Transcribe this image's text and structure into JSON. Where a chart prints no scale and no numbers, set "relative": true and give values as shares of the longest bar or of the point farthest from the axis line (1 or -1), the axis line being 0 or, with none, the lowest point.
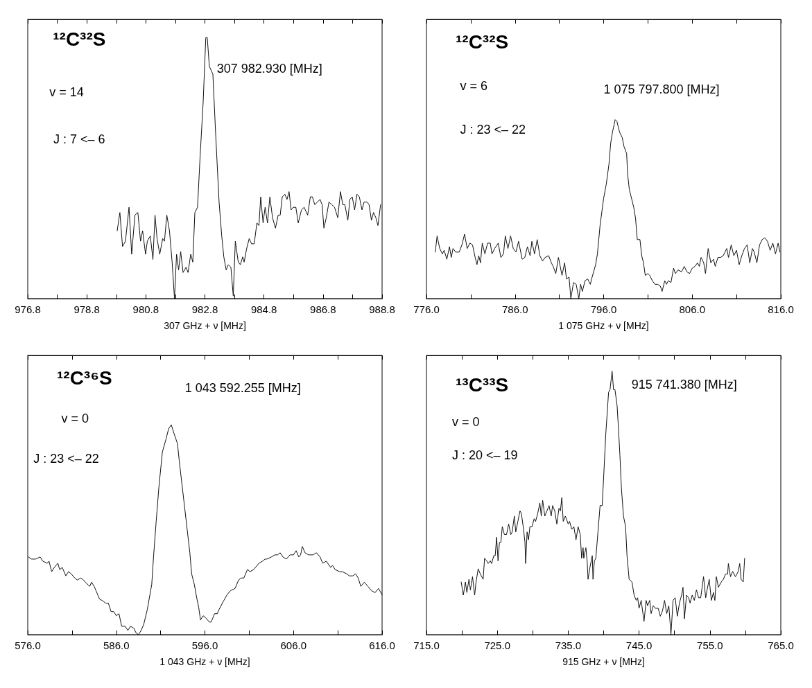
{
  "chart_data": [
    {
      "type": "line",
      "relative": true,
      "title": "¹²C³²S",
      "xlabel": "307 GHz + ν [MHz]",
      "annotations": [
        "307 982.930 [MHz]",
        "v = 14",
        "J : 7 <– 6"
      ],
      "color": "#111111",
      "xlim": [
        976.8,
        988.8
      ],
      "xticks": [
        976.8,
        {
          "value": 977.8,
          "label": null
        },
        978.8,
        {
          "value": 979.8,
          "label": null
        },
        980.8,
        {
          "value": 981.8,
          "label": null
        },
        982.8,
        {
          "value": 983.8,
          "label": null
        },
        984.8,
        {
          "value": 985.8,
          "label": null
        },
        986.8,
        {
          "value": 987.8,
          "label": null
        },
        988.8
      ],
      "x": [
        979.83,
        979.92,
        980.01,
        980.11,
        980.23,
        980.32,
        980.43,
        980.53,
        980.62,
        980.69,
        980.79,
        980.85,
        980.95,
        981.04,
        981.11,
        981.18,
        981.27,
        981.37,
        981.43,
        981.51,
        981.6,
        981.69,
        981.77,
        981.84,
        981.91,
        981.98,
        982.06,
        982.16,
        982.23,
        982.32,
        982.39,
        982.46,
        982.55,
        982.64,
        982.74,
        982.83,
        982.88,
        982.95,
        983.07,
        983.16,
        983.28,
        983.37,
        983.44,
        983.52,
        983.59,
        983.68,
        983.76,
        983.83,
        983.93,
        984.0,
        984.08,
        984.13,
        984.21,
        984.3,
        984.38,
        984.47,
        984.56,
        984.63,
        984.69,
        984.77,
        984.84,
        984.92,
        985.0,
        985.09,
        985.19,
        985.28,
        985.35,
        985.42,
        985.51,
        985.58,
        985.65,
        985.72,
        985.79,
        985.88,
        985.96,
        986.07,
        986.16,
        986.28,
        986.37,
        986.44,
        986.52,
        986.61,
        986.7,
        986.77,
        986.83,
        986.91,
        987.0,
        987.1,
        987.19,
        987.3,
        987.39,
        987.47,
        987.54,
        987.64,
        987.71,
        987.79,
        987.87,
        987.95,
        988.03,
        988.12,
        988.19,
        988.29,
        988.36,
        988.44,
        988.51,
        988.59,
        988.66,
        988.75
      ],
      "values": [
        0.26,
        0.33,
        0.2,
        0.22,
        0.35,
        0.17,
        0.32,
        0.33,
        0.22,
        0.26,
        0.17,
        0.22,
        0.24,
        0.15,
        0.32,
        0.23,
        0.17,
        0.23,
        0.22,
        0.32,
        0.26,
        0.14,
        0.0,
        0.17,
        0.11,
        0.18,
        0.1,
        0.12,
        0.1,
        0.17,
        0.14,
        0.33,
        0.35,
        0.55,
        0.75,
        1.0,
        1.0,
        0.89,
        0.86,
        0.64,
        0.37,
        0.24,
        0.16,
        0.11,
        0.13,
        0.12,
        0.01,
        0.22,
        0.14,
        0.13,
        0.16,
        0.14,
        0.19,
        0.23,
        0.21,
        0.21,
        0.29,
        0.28,
        0.39,
        0.29,
        0.35,
        0.29,
        0.39,
        0.31,
        0.27,
        0.32,
        0.32,
        0.39,
        0.4,
        0.38,
        0.41,
        0.34,
        0.35,
        0.35,
        0.29,
        0.34,
        0.35,
        0.32,
        0.39,
        0.39,
        0.36,
        0.37,
        0.38,
        0.36,
        0.27,
        0.31,
        0.37,
        0.36,
        0.35,
        0.31,
        0.41,
        0.36,
        0.36,
        0.3,
        0.38,
        0.39,
        0.34,
        0.4,
        0.39,
        0.34,
        0.37,
        0.37,
        0.36,
        0.3,
        0.33,
        0.31,
        0.28,
        0.36
      ]
    },
    {
      "type": "line",
      "relative": true,
      "title": "¹²C³²S",
      "xlabel": "1 075 GHz + ν [MHz]",
      "annotations": [
        "1 075 797.800 [MHz]",
        "v = 6",
        "J : 23 <– 22"
      ],
      "color": "#111111",
      "xlim": [
        776,
        816
      ],
      "xticks": [
        {
          "value": 776,
          "label": "776.0"
        },
        {
          "value": 781,
          "label": null
        },
        {
          "value": 786,
          "label": "786.0"
        },
        {
          "value": 791,
          "label": null
        },
        {
          "value": 796,
          "label": "796.0"
        },
        {
          "value": 801,
          "label": null
        },
        {
          "value": 806,
          "label": "806.0"
        },
        {
          "value": 811,
          "label": null
        },
        {
          "value": 816,
          "label": "816.0"
        }
      ],
      "x": [
        777.0,
        777.2,
        777.5,
        777.8,
        778.0,
        778.3,
        778.6,
        778.8,
        779.0,
        779.3,
        779.7,
        780.0,
        780.3,
        780.6,
        780.9,
        781.2,
        781.5,
        781.7,
        781.9,
        782.1,
        782.3,
        782.6,
        782.9,
        783.2,
        783.4,
        783.7,
        784.1,
        784.4,
        784.7,
        784.9,
        785.2,
        785.5,
        785.8,
        786.1,
        786.4,
        786.8,
        787.1,
        787.4,
        787.7,
        787.9,
        788.2,
        788.5,
        788.8,
        789.1,
        789.4,
        789.8,
        790.1,
        790.3,
        790.6,
        790.9,
        791.3,
        791.6,
        791.8,
        792.1,
        792.3,
        792.6,
        792.9,
        793.2,
        793.4,
        793.6,
        793.9,
        794.2,
        794.5,
        794.7,
        795.1,
        795.3,
        795.6,
        796.0,
        796.3,
        796.6,
        796.8,
        797.0,
        797.3,
        797.5,
        797.8,
        798.1,
        798.3,
        798.6,
        798.7,
        798.9,
        799.2,
        799.4,
        799.6,
        799.8,
        800.1,
        800.3,
        800.5,
        800.7,
        801.0,
        801.2,
        801.5,
        801.8,
        802.1,
        802.4,
        802.6,
        802.9,
        803.1,
        803.3,
        803.6,
        803.9,
        804.1,
        804.4,
        804.8,
        805.1,
        805.4,
        805.7,
        806.0,
        806.3,
        806.6,
        806.8,
        807.0,
        807.3,
        807.5,
        807.8,
        808.1,
        808.4,
        808.6,
        808.9,
        809.2,
        809.5,
        809.9,
        810.1,
        810.4,
        810.7,
        811.0,
        811.3,
        811.6,
        811.9,
        812.2,
        812.5,
        812.8,
        813.0,
        813.3,
        813.6,
        813.9,
        814.2,
        814.5,
        814.8,
        815.1,
        815.4,
        815.7,
        815.9
      ],
      "values": [
        0.26,
        0.35,
        0.28,
        0.25,
        0.27,
        0.22,
        0.29,
        0.23,
        0.28,
        0.26,
        0.26,
        0.3,
        0.36,
        0.28,
        0.31,
        0.3,
        0.23,
        0.19,
        0.24,
        0.2,
        0.31,
        0.25,
        0.31,
        0.31,
        0.25,
        0.28,
        0.31,
        0.23,
        0.25,
        0.35,
        0.28,
        0.35,
        0.28,
        0.26,
        0.32,
        0.22,
        0.23,
        0.29,
        0.24,
        0.32,
        0.25,
        0.33,
        0.24,
        0.21,
        0.23,
        0.24,
        0.2,
        0.18,
        0.14,
        0.23,
        0.13,
        0.2,
        0.11,
        0.12,
        0.0,
        0.09,
        0.08,
        0.0,
        0.08,
        0.04,
        0.1,
        0.11,
        0.08,
        0.12,
        0.19,
        0.25,
        0.41,
        0.56,
        0.64,
        0.75,
        0.87,
        0.93,
        1.0,
        0.99,
        0.93,
        0.9,
        0.85,
        0.81,
        0.7,
        0.61,
        0.55,
        0.51,
        0.45,
        0.33,
        0.33,
        0.24,
        0.2,
        0.13,
        0.14,
        0.13,
        0.1,
        0.08,
        0.08,
        0.07,
        0.04,
        0.1,
        0.08,
        0.1,
        0.09,
        0.17,
        0.14,
        0.16,
        0.15,
        0.18,
        0.15,
        0.14,
        0.17,
        0.18,
        0.2,
        0.18,
        0.23,
        0.2,
        0.14,
        0.28,
        0.2,
        0.22,
        0.18,
        0.23,
        0.23,
        0.24,
        0.28,
        0.23,
        0.3,
        0.24,
        0.27,
        0.19,
        0.24,
        0.28,
        0.3,
        0.2,
        0.28,
        0.26,
        0.2,
        0.3,
        0.33,
        0.34,
        0.32,
        0.27,
        0.31,
        0.25,
        0.31,
        0.26
      ]
    },
    {
      "type": "line",
      "relative": true,
      "title": "¹²C³⁶S",
      "xlabel": "1 043 GHz + ν [MHz]",
      "annotations": [
        "1 043 592.255 [MHz]",
        "v = 0",
        "J : 23 <– 22"
      ],
      "color": "#111111",
      "xlim": [
        576,
        616
      ],
      "xticks": [
        {
          "value": 576,
          "label": "576.0"
        },
        {
          "value": 581,
          "label": null
        },
        {
          "value": 586,
          "label": "586.0"
        },
        {
          "value": 591,
          "label": null
        },
        {
          "value": 596,
          "label": "596.0"
        },
        {
          "value": 601,
          "label": null
        },
        {
          "value": 606,
          "label": "606.0"
        },
        {
          "value": 611,
          "label": null
        },
        {
          "value": 616,
          "label": "616.0"
        }
      ],
      "x": [
        576.1,
        576.4,
        576.9,
        577.4,
        577.7,
        578.2,
        578.4,
        578.7,
        579.0,
        579.4,
        579.6,
        579.9,
        580.3,
        580.6,
        580.9,
        581.3,
        581.6,
        582.0,
        582.3,
        582.5,
        583.0,
        583.2,
        583.5,
        583.7,
        584.1,
        584.5,
        584.8,
        585.1,
        585.4,
        585.7,
        586.0,
        586.3,
        586.6,
        587.0,
        587.3,
        587.6,
        588.0,
        588.2,
        588.5,
        588.8,
        589.1,
        589.5,
        590.0,
        590.2,
        590.5,
        590.8,
        591.2,
        591.6,
        591.9,
        592.2,
        592.5,
        592.9,
        593.1,
        593.4,
        593.7,
        594.0,
        594.3,
        594.5,
        594.8,
        595.1,
        595.3,
        595.5,
        595.8,
        596.1,
        596.3,
        596.5,
        596.7,
        597.1,
        597.4,
        597.6,
        598.1,
        598.5,
        598.9,
        599.4,
        599.8,
        600.1,
        600.4,
        600.8,
        601.1,
        601.5,
        602.1,
        602.5,
        602.8,
        603.0,
        603.5,
        603.9,
        604.2,
        604.5,
        604.8,
        605.2,
        605.6,
        606.0,
        606.3,
        606.6,
        606.8,
        607.0,
        607.3,
        607.7,
        608.2,
        608.6,
        609.0,
        609.3,
        609.7,
        610.2,
        610.4,
        610.7,
        611.2,
        611.5,
        612.0,
        612.3,
        612.7,
        613.0,
        613.3,
        613.6,
        614.0,
        614.4,
        614.8,
        615.2,
        615.6,
        616.0
      ],
      "values": [
        0.37,
        0.36,
        0.36,
        0.37,
        0.35,
        0.34,
        0.35,
        0.3,
        0.32,
        0.34,
        0.31,
        0.32,
        0.28,
        0.3,
        0.29,
        0.27,
        0.26,
        0.27,
        0.26,
        0.25,
        0.23,
        0.25,
        0.23,
        0.21,
        0.17,
        0.16,
        0.15,
        0.15,
        0.11,
        0.11,
        0.09,
        0.1,
        0.04,
        0.04,
        0.02,
        0.04,
        0.03,
        0.01,
        0.0,
        0.02,
        0.05,
        0.12,
        0.24,
        0.37,
        0.54,
        0.7,
        0.87,
        0.93,
        0.98,
        1.0,
        0.96,
        0.91,
        0.83,
        0.72,
        0.61,
        0.5,
        0.39,
        0.29,
        0.24,
        0.17,
        0.13,
        0.07,
        0.09,
        0.08,
        0.07,
        0.06,
        0.06,
        0.1,
        0.1,
        0.12,
        0.16,
        0.19,
        0.21,
        0.22,
        0.26,
        0.27,
        0.27,
        0.31,
        0.3,
        0.31,
        0.34,
        0.35,
        0.36,
        0.36,
        0.37,
        0.38,
        0.38,
        0.39,
        0.37,
        0.36,
        0.38,
        0.38,
        0.4,
        0.37,
        0.38,
        0.42,
        0.39,
        0.38,
        0.38,
        0.39,
        0.37,
        0.34,
        0.35,
        0.32,
        0.33,
        0.31,
        0.3,
        0.3,
        0.29,
        0.28,
        0.28,
        0.29,
        0.27,
        0.23,
        0.25,
        0.23,
        0.21,
        0.2,
        0.22,
        0.19
      ]
    },
    {
      "type": "line",
      "relative": true,
      "title": "¹³C³³S",
      "xlabel": "915 GHz + ν [MHz]",
      "annotations": [
        "915 741.380 [MHz]",
        "v = 0",
        "J : 20 <– 19"
      ],
      "color": "#111111",
      "xlim": [
        715,
        765
      ],
      "xticks": [
        {
          "value": 715,
          "label": "715.0"
        },
        {
          "value": 720,
          "label": null
        },
        {
          "value": 725,
          "label": "725.0"
        },
        {
          "value": 730,
          "label": null
        },
        {
          "value": 735,
          "label": "735.0"
        },
        {
          "value": 740,
          "label": null
        },
        {
          "value": 745,
          "label": "745.0"
        },
        {
          "value": 750,
          "label": null
        },
        {
          "value": 755,
          "label": "755.0"
        },
        {
          "value": 760,
          "label": null
        },
        {
          "value": 765,
          "label": "765.0"
        }
      ],
      "x": [
        719.9,
        720.2,
        720.5,
        720.7,
        721.0,
        721.2,
        721.5,
        721.8,
        722.0,
        722.3,
        722.6,
        723.0,
        723.2,
        723.5,
        723.7,
        724.0,
        724.2,
        724.5,
        724.7,
        724.9,
        725.1,
        725.3,
        725.5,
        725.7,
        726.0,
        726.3,
        726.6,
        726.9,
        727.1,
        727.4,
        727.6,
        727.9,
        728.2,
        728.4,
        728.7,
        728.9,
        729.0,
        729.2,
        729.4,
        729.6,
        729.9,
        730.2,
        730.4,
        730.7,
        731.0,
        731.2,
        731.4,
        731.7,
        732.0,
        732.3,
        732.6,
        732.8,
        733.1,
        733.4,
        733.7,
        733.9,
        734.1,
        734.3,
        734.6,
        735.0,
        735.2,
        735.5,
        735.8,
        736.1,
        736.4,
        736.7,
        736.9,
        737.1,
        737.2,
        737.5,
        737.7,
        737.8,
        738.1,
        738.4,
        738.5,
        738.7,
        738.9,
        739.2,
        739.5,
        739.8,
        740.1,
        740.3,
        740.7,
        740.9,
        741.2,
        741.4,
        741.6,
        741.9,
        742.1,
        742.3,
        742.5,
        742.8,
        743.1,
        743.3,
        743.6,
        744.0,
        744.3,
        744.6,
        744.8,
        745.0,
        745.3,
        745.7,
        746.0,
        746.2,
        746.5,
        746.7,
        747.0,
        747.3,
        747.7,
        748.0,
        748.3,
        748.6,
        748.9,
        749.2,
        749.5,
        749.8,
        750.1,
        750.4,
        750.7,
        751.0,
        751.2,
        751.4,
        751.7,
        752.0,
        752.2,
        752.5,
        752.8,
        753.1,
        753.4,
        753.7,
        754.1,
        754.4,
        754.6,
        754.9,
        755.2,
        755.5,
        755.7,
        755.9,
        756.2,
        756.6,
        756.9,
        757.2,
        757.5,
        757.6,
        757.9,
        758.2,
        758.6,
        759.0,
        759.2,
        759.4,
        759.7,
        759.9
      ],
      "values": [
        0.2,
        0.15,
        0.2,
        0.16,
        0.21,
        0.17,
        0.22,
        0.15,
        0.2,
        0.25,
        0.23,
        0.21,
        0.29,
        0.28,
        0.27,
        0.28,
        0.27,
        0.3,
        0.3,
        0.37,
        0.28,
        0.35,
        0.35,
        0.41,
        0.38,
        0.38,
        0.42,
        0.38,
        0.39,
        0.45,
        0.39,
        0.43,
        0.47,
        0.46,
        0.4,
        0.35,
        0.27,
        0.39,
        0.36,
        0.41,
        0.41,
        0.44,
        0.43,
        0.46,
        0.5,
        0.45,
        0.51,
        0.45,
        0.47,
        0.49,
        0.45,
        0.49,
        0.47,
        0.42,
        0.48,
        0.47,
        0.52,
        0.43,
        0.45,
        0.42,
        0.43,
        0.4,
        0.41,
        0.36,
        0.41,
        0.38,
        0.29,
        0.33,
        0.29,
        0.33,
        0.27,
        0.21,
        0.26,
        0.3,
        0.21,
        0.28,
        0.29,
        0.39,
        0.49,
        0.49,
        0.65,
        0.76,
        0.92,
        0.93,
        1.0,
        0.93,
        0.93,
        0.87,
        0.78,
        0.68,
        0.56,
        0.45,
        0.41,
        0.3,
        0.21,
        0.2,
        0.15,
        0.13,
        0.14,
        0.1,
        0.13,
        0.05,
        0.13,
        0.11,
        0.13,
        0.08,
        0.11,
        0.1,
        0.1,
        0.07,
        0.09,
        0.13,
        0.08,
        0.11,
        0.0,
        0.13,
        0.14,
        0.07,
        0.12,
        0.15,
        0.18,
        0.06,
        0.15,
        0.14,
        0.12,
        0.15,
        0.13,
        0.17,
        0.14,
        0.14,
        0.22,
        0.14,
        0.17,
        0.21,
        0.13,
        0.16,
        0.13,
        0.22,
        0.18,
        0.2,
        0.21,
        0.23,
        0.23,
        0.27,
        0.22,
        0.24,
        0.22,
        0.24,
        0.27,
        0.21,
        0.2,
        0.29
      ]
    }
  ]
}
